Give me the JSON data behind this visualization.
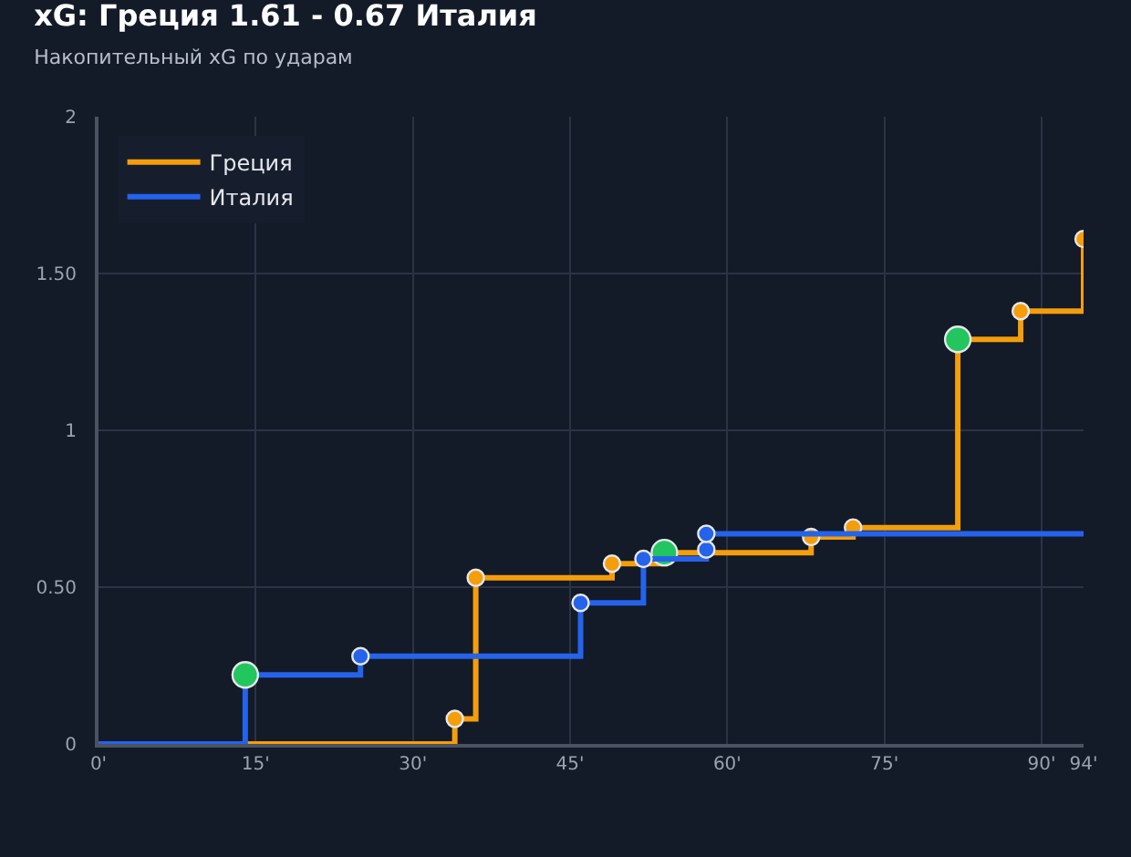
{
  "chart_data": {
    "type": "step",
    "title": "xG: Греция 1.61 - 0.67 Италия",
    "subtitle": "Накопительный xG по ударам",
    "xlim": [
      0,
      94
    ],
    "xticks": [
      {
        "value": 0,
        "label": "0'"
      },
      {
        "value": 15,
        "label": "15'"
      },
      {
        "value": 30,
        "label": "30'"
      },
      {
        "value": 45,
        "label": "45'"
      },
      {
        "value": 60,
        "label": "60'"
      },
      {
        "value": 75,
        "label": "75'"
      },
      {
        "value": 90,
        "label": "90'"
      },
      {
        "value": 94,
        "label": "94'"
      }
    ],
    "ylim": [
      0,
      2
    ],
    "yticks": [
      0,
      {
        "value": 0.5,
        "label": "0.50"
      },
      1,
      {
        "value": 1.5,
        "label": "1.50"
      },
      2
    ],
    "grid": true,
    "legend": "top left",
    "marker": "circle",
    "line_style": "solid",
    "series": [
      {
        "name": "Греция",
        "color": "#f59e0b",
        "x": [
          0,
          34,
          36,
          49,
          54,
          68,
          72,
          82,
          88,
          94
        ],
        "values": [
          0,
          0.08,
          0.53,
          0.575,
          0.61,
          0.66,
          0.69,
          1.29,
          1.38,
          1.61
        ],
        "colors": [
          null,
          "#f59e0b",
          "#f59e0b",
          "#f59e0b",
          "#22c55e",
          "#f59e0b",
          "#f59e0b",
          "#22c55e",
          "#f59e0b",
          "#f59e0b"
        ]
      },
      {
        "name": "Италия",
        "color": "#2563eb",
        "x": [
          0,
          14,
          25,
          46,
          52,
          58,
          58,
          94
        ],
        "values": [
          0,
          0.22,
          0.28,
          0.45,
          0.59,
          0.62,
          0.67,
          0.67
        ],
        "colors": [
          null,
          "#22c55e",
          "#2563eb",
          "#2563eb",
          "#2563eb",
          "#2563eb",
          "#2563eb",
          null
        ]
      }
    ]
  }
}
